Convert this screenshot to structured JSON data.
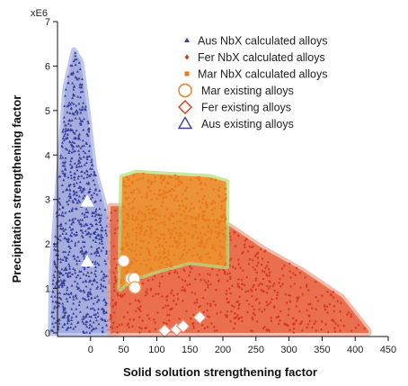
{
  "chart_data": {
    "type": "scatter",
    "xlabel": "Solid solution strengthening factor",
    "ylabel": "Precipitation strengthening factor",
    "y_multiplier_label": "xE6",
    "xlim": [
      -50,
      450
    ],
    "ylim": [
      0,
      7
    ],
    "x_ticks": [
      0,
      50,
      100,
      150,
      200,
      250,
      300,
      350,
      400,
      450
    ],
    "y_ticks": [
      0,
      1,
      2,
      3,
      4,
      5,
      6,
      7
    ],
    "legend_placement": "top-right",
    "series": [
      {
        "name": "Aus NbX calculated alloys",
        "marker": "triangle-small",
        "color": "#3a3f9a",
        "region": [
          [
            -60,
            0
          ],
          [
            -58,
            1.5
          ],
          [
            -48,
            3.5
          ],
          [
            -38,
            5.5
          ],
          [
            -25,
            6.35
          ],
          [
            -15,
            6.1
          ],
          [
            -5,
            5.0
          ],
          [
            5,
            3.7
          ],
          [
            20,
            2.9
          ],
          [
            32,
            2.3
          ],
          [
            35,
            0.3
          ],
          [
            40,
            0
          ]
        ]
      },
      {
        "name": "Fer NbX calculated alloys",
        "marker": "diamond-small",
        "color": "#d63a1e",
        "region": [
          [
            30,
            0
          ],
          [
            30,
            2.85
          ],
          [
            60,
            2.85
          ],
          [
            150,
            2.65
          ],
          [
            210,
            2.4
          ],
          [
            260,
            1.9
          ],
          [
            320,
            1.4
          ],
          [
            380,
            0.8
          ],
          [
            420,
            0.05
          ],
          [
            420,
            0
          ]
        ]
      },
      {
        "name": "Mar NbX calculated alloys",
        "marker": "square-small",
        "color": "#e87a1e",
        "region": [
          [
            45,
            1.0
          ],
          [
            48,
            3.5
          ],
          [
            70,
            3.6
          ],
          [
            120,
            3.55
          ],
          [
            180,
            3.5
          ],
          [
            205,
            3.4
          ],
          [
            205,
            1.5
          ],
          [
            150,
            1.6
          ],
          [
            100,
            1.4
          ],
          [
            60,
            1.2
          ]
        ]
      },
      {
        "name": "Mar existing alloys",
        "marker": "circle-open",
        "color": "#e87a1e",
        "points": [
          [
            50,
            1.62
          ],
          [
            61,
            1.22
          ],
          [
            66,
            1.22
          ],
          [
            67,
            1.02
          ]
        ]
      },
      {
        "name": "Fer existing alloys",
        "marker": "diamond-open",
        "color": "#d63a1e",
        "points": [
          [
            112,
            0.05
          ],
          [
            130,
            0.08
          ],
          [
            140,
            0.15
          ],
          [
            165,
            0.35
          ]
        ]
      },
      {
        "name": "Aus existing alloys",
        "marker": "triangle-open",
        "color": "#3a3f9a",
        "points": [
          [
            -5,
            2.95
          ],
          [
            -5,
            1.6
          ]
        ]
      }
    ]
  }
}
